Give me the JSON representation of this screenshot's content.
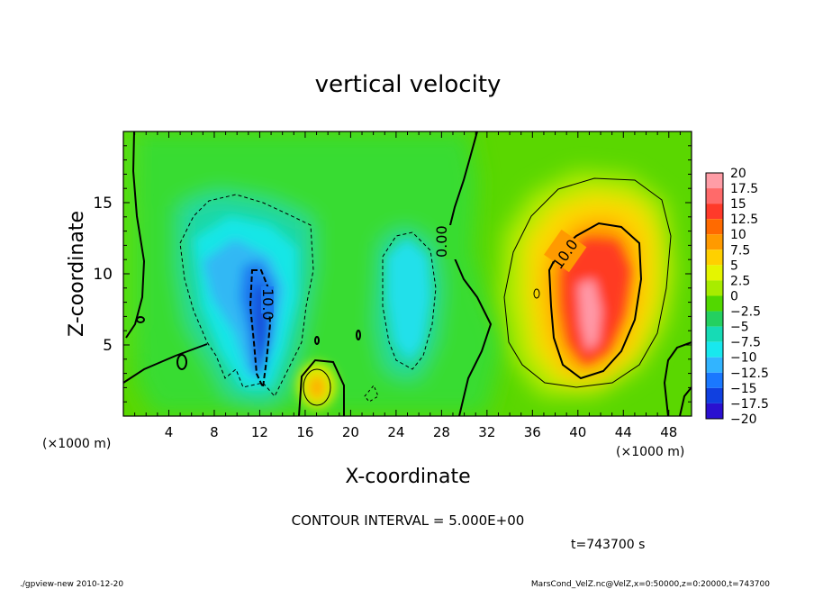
{
  "chart_data": {
    "type": "heatmap",
    "title": "vertical velocity",
    "xlabel": "X-coordinate",
    "ylabel": "Z-coordinate",
    "x_unit_left": "(×1000 m)",
    "x_unit_right": "(×1000 m)",
    "x_ticks": [
      "4",
      "8",
      "12",
      "16",
      "20",
      "24",
      "28",
      "32",
      "36",
      "40",
      "44",
      "48"
    ],
    "x_tick_values": [
      4,
      8,
      12,
      16,
      20,
      24,
      28,
      32,
      36,
      40,
      44,
      48
    ],
    "y_ticks": [
      "5",
      "10",
      "15"
    ],
    "y_tick_values": [
      5,
      10,
      15
    ],
    "xlim": [
      0,
      50
    ],
    "ylim": [
      0,
      20
    ],
    "contour_interval_text": "CONTOUR INTERVAL = 5.000E+00",
    "time_text": "t=743700 s",
    "contour_labels": [
      "10.0",
      "0.00",
      "10.0"
    ],
    "colorbar_labels": [
      "20",
      "17.5",
      "15",
      "12.5",
      "10",
      "7.5",
      "5",
      "2.5",
      "0",
      "−2.5",
      "−5",
      "−7.5",
      "−10",
      "−12.5",
      "−15",
      "−17.5",
      "−20"
    ],
    "colorbar_colors": [
      "#ff9da6",
      "#ff6a6a",
      "#ff3a2a",
      "#ff6a00",
      "#ff9a00",
      "#ffd000",
      "#e5f500",
      "#a8ec00",
      "#52d800",
      "#24d060",
      "#16dbb5",
      "#18e8ee",
      "#32b4ff",
      "#1a78ff",
      "#1040e0",
      "#2a10d0",
      "#6a1cc0"
    ],
    "features": [
      {
        "name": "updraft",
        "x_center": 41,
        "z_center": 7.5,
        "peak": 17.5
      },
      {
        "name": "downdraft-left",
        "x_center": 12,
        "z_center": 9,
        "peak": -12.5
      },
      {
        "name": "downdraft-mid",
        "x_center": 25,
        "z_center": 9,
        "peak": -7.5
      },
      {
        "name": "small-updraft",
        "x_center": 17.5,
        "z_center": 2,
        "peak": 10
      }
    ]
  },
  "footer": {
    "left": "./gpview-new   2010-12-20",
    "right": "MarsCond_VelZ.nc@VelZ,x=0:50000,z=0:20000,t=743700"
  }
}
